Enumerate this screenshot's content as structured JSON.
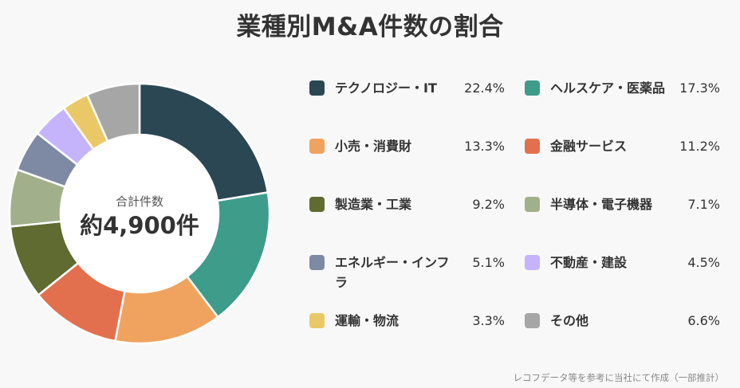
{
  "title": "業種別M&A件数の割合",
  "source_note": "レコフデータ等を参考に当社にて作成（一部推計）",
  "chart_data": {
    "type": "pie",
    "title": "業種別M&A件数の割合",
    "center_label": "合計件数",
    "center_value": "約4,900件",
    "unit": "%",
    "slices": [
      {
        "name": "テクノロジー・IT",
        "value": 22.4,
        "label": "22.4%",
        "color": "#2b4754"
      },
      {
        "name": "ヘルスケア・医薬品",
        "value": 17.3,
        "label": "17.3%",
        "color": "#3e9c8b"
      },
      {
        "name": "小売・消費財",
        "value": 13.3,
        "label": "13.3%",
        "color": "#f0a35e"
      },
      {
        "name": "金融サービス",
        "value": 11.2,
        "label": "11.2%",
        "color": "#e2704f"
      },
      {
        "name": "製造業・工業",
        "value": 9.2,
        "label": "9.2%",
        "color": "#5f6b30"
      },
      {
        "name": "半導体・電子機器",
        "value": 7.1,
        "label": "7.1%",
        "color": "#a1b08a"
      },
      {
        "name": "エネルギー・インフラ",
        "value": 5.1,
        "label": "5.1%",
        "color": "#7e8aa3"
      },
      {
        "name": "不動産・建設",
        "value": 4.5,
        "label": "4.5%",
        "color": "#c5b4fc"
      },
      {
        "name": "運輸・物流",
        "value": 3.3,
        "label": "3.3%",
        "color": "#ebc867"
      },
      {
        "name": "その他",
        "value": 6.6,
        "label": "6.6%",
        "color": "#a6a6a6"
      }
    ]
  }
}
